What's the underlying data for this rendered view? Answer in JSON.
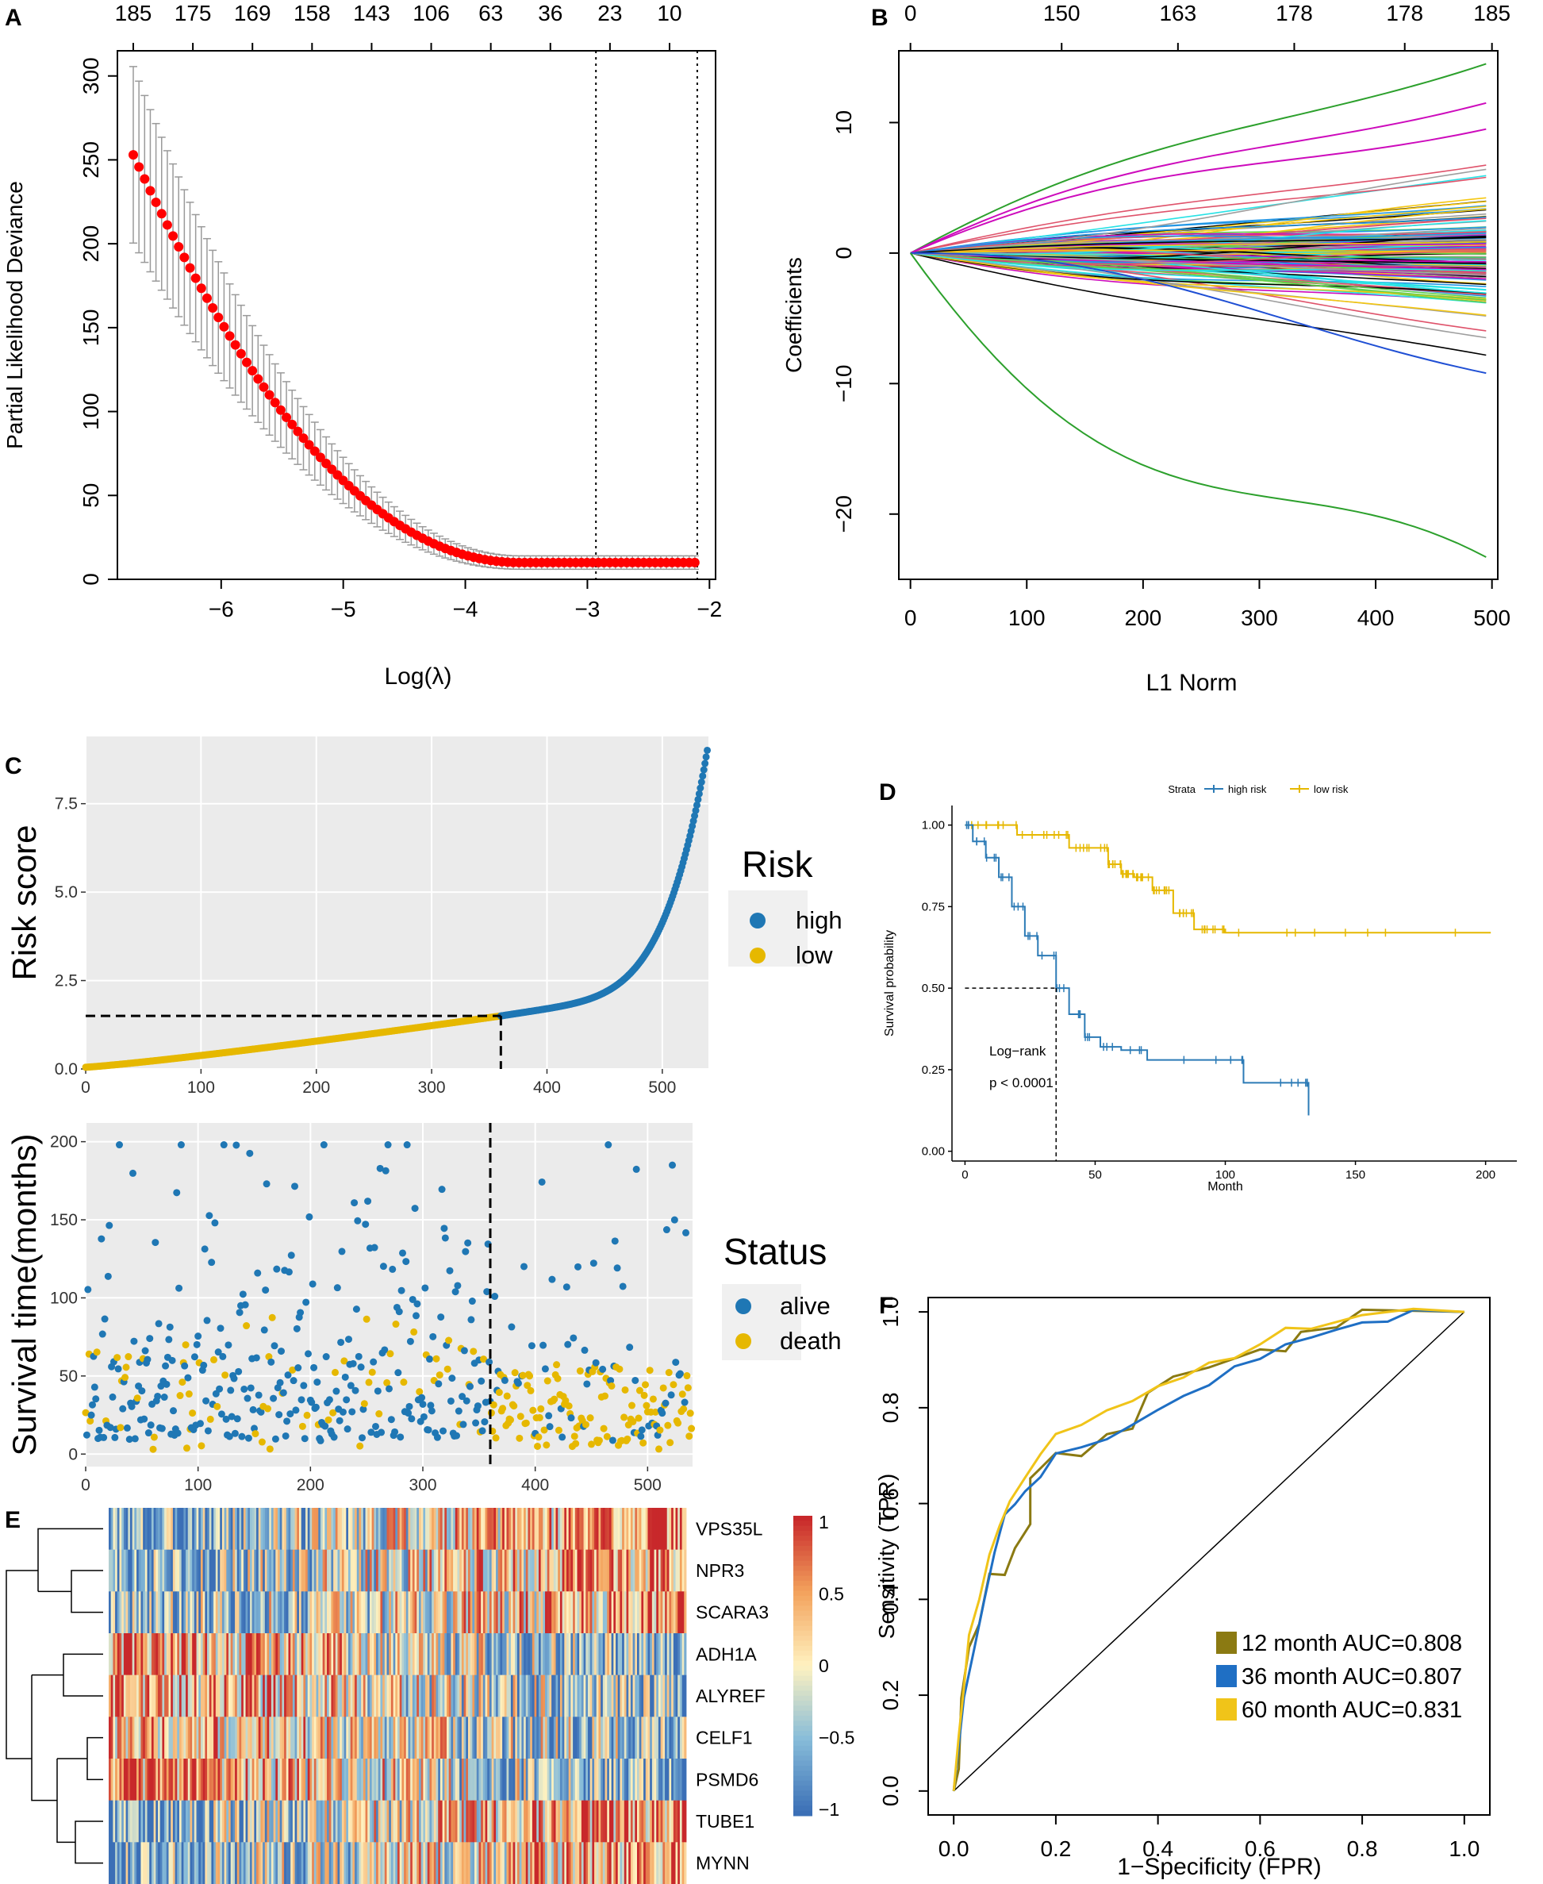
{
  "panel_labels": {
    "A": "A",
    "B": "B",
    "C": "C",
    "D": "D",
    "E": "E",
    "F": "F"
  },
  "chart_data": [
    {
      "panel": "A",
      "type": "scatter",
      "xlabel": "Log(λ)",
      "ylabel": "Partial Likelihood Deviance",
      "xlim": [
        -6.85,
        -1.95
      ],
      "ylim": [
        0,
        315
      ],
      "xticks": [
        -6,
        -5,
        -4,
        -3,
        -2
      ],
      "yticks": [
        0,
        50,
        100,
        150,
        200,
        250,
        300
      ],
      "top_axis_labels": [
        "185",
        "175",
        "169",
        "158",
        "143",
        "106",
        "63",
        "36",
        "23",
        "10"
      ],
      "vlines": [
        -2.93,
        -2.1
      ],
      "curve": {
        "x0": -6.72,
        "x1": -2.12,
        "n": 100,
        "y_start": 253,
        "y_floor": 10,
        "x_floor": -3.55
      }
    },
    {
      "panel": "B",
      "type": "line",
      "xlabel": "L1 Norm",
      "ylabel": "Coefficients",
      "xlim": [
        -10,
        505
      ],
      "ylim": [
        -25,
        15.5
      ],
      "xticks": [
        0,
        100,
        200,
        300,
        400,
        500
      ],
      "yticks": [
        -20,
        -10,
        0,
        10
      ],
      "top_axis_values": [
        0,
        130,
        230,
        330,
        425,
        500
      ],
      "top_axis_labels": [
        "0",
        "150",
        "163",
        "178",
        "178",
        "185"
      ],
      "series_count": 185,
      "extreme_endpoints": [
        14.5,
        11.5,
        9.5,
        -9.2,
        -23.3
      ],
      "palette": [
        "#000000",
        "#df536b",
        "#61d04f",
        "#2297e6",
        "#28e2e5",
        "#cd0bbc",
        "#f5c710",
        "#9e9e9e"
      ]
    },
    {
      "panel": "C-top",
      "type": "scatter",
      "ylabel": "Risk score",
      "xlim": [
        0,
        540
      ],
      "ylim": [
        0,
        9.4
      ],
      "xticks": [
        0,
        100,
        200,
        300,
        400,
        500
      ],
      "yticks": [
        0.0,
        2.5,
        5.0,
        7.5
      ],
      "ytick_labels": [
        "0.0",
        "2.5",
        "5.0",
        "7.5"
      ],
      "n": 540,
      "cutoff_index": 360,
      "cutoff_value": 1.5,
      "max_value": 9.2,
      "legend_title": "Risk",
      "legend": [
        "high",
        "low"
      ],
      "colors": [
        "#1f77b4",
        "#e6b800"
      ]
    },
    {
      "panel": "C-bottom",
      "type": "scatter",
      "ylabel": "Survival time(months)",
      "xlim": [
        0,
        540
      ],
      "ylim": [
        -8,
        212
      ],
      "xticks": [
        0,
        100,
        200,
        300,
        400,
        500
      ],
      "yticks": [
        0,
        50,
        100,
        150,
        200
      ],
      "n": 540,
      "cutoff_index": 360,
      "max_time": 200,
      "legend_title": "Status",
      "legend": [
        "alive",
        "death"
      ],
      "colors": [
        "#1f77b4",
        "#e6b800"
      ]
    },
    {
      "panel": "D",
      "type": "line",
      "title": "Strata",
      "legend": [
        "high risk",
        "low risk"
      ],
      "colors": [
        "#2c7bb6",
        "#e6b800"
      ],
      "xlabel": "Month",
      "ylabel": "Survival probability",
      "xlim": [
        -5,
        212
      ],
      "ylim": [
        -0.03,
        1.06
      ],
      "xticks": [
        0,
        50,
        100,
        150,
        200
      ],
      "yticks": [
        0.0,
        0.25,
        0.5,
        0.75,
        1.0
      ],
      "ytick_labels": [
        "0.00",
        "0.25",
        "0.50",
        "0.75",
        "1.00"
      ],
      "annotation": [
        "Log−rank",
        "p < 0.0001"
      ],
      "median_high_risk": 35,
      "high_risk": [
        [
          0,
          1.0
        ],
        [
          3,
          0.95
        ],
        [
          8,
          0.9
        ],
        [
          13,
          0.84
        ],
        [
          18,
          0.75
        ],
        [
          23,
          0.66
        ],
        [
          28,
          0.6
        ],
        [
          35,
          0.5
        ],
        [
          40,
          0.42
        ],
        [
          46,
          0.35
        ],
        [
          52,
          0.32
        ],
        [
          60,
          0.31
        ],
        [
          70,
          0.28
        ],
        [
          105,
          0.28
        ],
        [
          107,
          0.21
        ],
        [
          130,
          0.21
        ],
        [
          132,
          0.11
        ]
      ],
      "low_risk": [
        [
          0,
          1.0
        ],
        [
          20,
          0.97
        ],
        [
          40,
          0.93
        ],
        [
          55,
          0.88
        ],
        [
          60,
          0.85
        ],
        [
          65,
          0.84
        ],
        [
          72,
          0.8
        ],
        [
          80,
          0.73
        ],
        [
          88,
          0.68
        ],
        [
          100,
          0.67
        ],
        [
          202,
          0.67
        ]
      ]
    },
    {
      "panel": "E",
      "type": "heatmap",
      "rows": [
        "VPS35L",
        "NPR3",
        "SCARA3",
        "ADH1A",
        "ALYREF",
        "CELF1",
        "PSMD6",
        "TUBE1",
        "MYNN"
      ],
      "columns": 540,
      "cutoff_index": 360,
      "value_range": [
        -1,
        1
      ],
      "row_trend": [
        0.8,
        0.7,
        0.6,
        -0.7,
        -0.6,
        -0.5,
        -0.7,
        0.7,
        0.6
      ],
      "colorbar_ticks": [
        "1",
        "0.5",
        "0",
        "−0.5",
        "−1"
      ],
      "colors": [
        "#3b6fb6",
        "#87bcd9",
        "#fff2c0",
        "#f3a25c",
        "#c8282b"
      ]
    },
    {
      "panel": "F",
      "type": "line",
      "xlabel": "1−Specificity (FPR)",
      "ylabel": "Sensitivity (TPR)",
      "xlim": [
        -0.05,
        1.05
      ],
      "ylim": [
        -0.05,
        1.03
      ],
      "xticks": [
        0.0,
        0.2,
        0.4,
        0.6,
        0.8,
        1.0
      ],
      "yticks": [
        0.0,
        0.2,
        0.4,
        0.6,
        0.8,
        1.0
      ],
      "tick_labels": [
        "0.0",
        "0.2",
        "0.4",
        "0.6",
        "0.8",
        "1.0"
      ],
      "series": [
        {
          "name": "12 month AUC=0.808",
          "color": "#8b7a12",
          "points": [
            [
              0,
              0
            ],
            [
              0.01,
              0.05
            ],
            [
              0.015,
              0.2
            ],
            [
              0.03,
              0.3
            ],
            [
              0.05,
              0.35
            ],
            [
              0.07,
              0.45
            ],
            [
              0.1,
              0.45
            ],
            [
              0.12,
              0.5
            ],
            [
              0.15,
              0.55
            ],
            [
              0.15,
              0.65
            ],
            [
              0.17,
              0.67
            ],
            [
              0.2,
              0.7
            ],
            [
              0.25,
              0.7
            ],
            [
              0.3,
              0.75
            ],
            [
              0.35,
              0.75
            ],
            [
              0.38,
              0.83
            ],
            [
              0.43,
              0.86
            ],
            [
              0.5,
              0.88
            ],
            [
              0.6,
              0.92
            ],
            [
              0.65,
              0.92
            ],
            [
              0.68,
              0.96
            ],
            [
              0.75,
              0.97
            ],
            [
              0.8,
              1.0
            ],
            [
              1,
              1.0
            ]
          ]
        },
        {
          "name": "36 month AUC=0.807",
          "color": "#1f6fc4",
          "points": [
            [
              0,
              0
            ],
            [
              0.01,
              0.1
            ],
            [
              0.02,
              0.2
            ],
            [
              0.04,
              0.3
            ],
            [
              0.06,
              0.4
            ],
            [
              0.08,
              0.5
            ],
            [
              0.1,
              0.58
            ],
            [
              0.12,
              0.6
            ],
            [
              0.14,
              0.62
            ],
            [
              0.17,
              0.66
            ],
            [
              0.2,
              0.7
            ],
            [
              0.25,
              0.72
            ],
            [
              0.3,
              0.74
            ],
            [
              0.35,
              0.77
            ],
            [
              0.4,
              0.79
            ],
            [
              0.45,
              0.82
            ],
            [
              0.5,
              0.85
            ],
            [
              0.55,
              0.88
            ],
            [
              0.6,
              0.9
            ],
            [
              0.65,
              0.93
            ],
            [
              0.7,
              0.95
            ],
            [
              0.75,
              0.97
            ],
            [
              0.8,
              0.98
            ],
            [
              0.85,
              0.98
            ],
            [
              0.9,
              1.0
            ],
            [
              1,
              1.0
            ]
          ]
        },
        {
          "name": "60 month AUC=0.831",
          "color": "#f0c419",
          "points": [
            [
              0,
              0
            ],
            [
              0.01,
              0.12
            ],
            [
              0.02,
              0.22
            ],
            [
              0.03,
              0.32
            ],
            [
              0.05,
              0.4
            ],
            [
              0.07,
              0.5
            ],
            [
              0.09,
              0.56
            ],
            [
              0.11,
              0.6
            ],
            [
              0.14,
              0.65
            ],
            [
              0.17,
              0.7
            ],
            [
              0.2,
              0.74
            ],
            [
              0.25,
              0.76
            ],
            [
              0.3,
              0.79
            ],
            [
              0.35,
              0.82
            ],
            [
              0.4,
              0.84
            ],
            [
              0.45,
              0.87
            ],
            [
              0.5,
              0.89
            ],
            [
              0.55,
              0.91
            ],
            [
              0.6,
              0.93
            ],
            [
              0.65,
              0.96
            ],
            [
              0.7,
              0.97
            ],
            [
              0.8,
              0.99
            ],
            [
              0.9,
              1.0
            ],
            [
              1,
              1.0
            ]
          ]
        }
      ]
    }
  ]
}
